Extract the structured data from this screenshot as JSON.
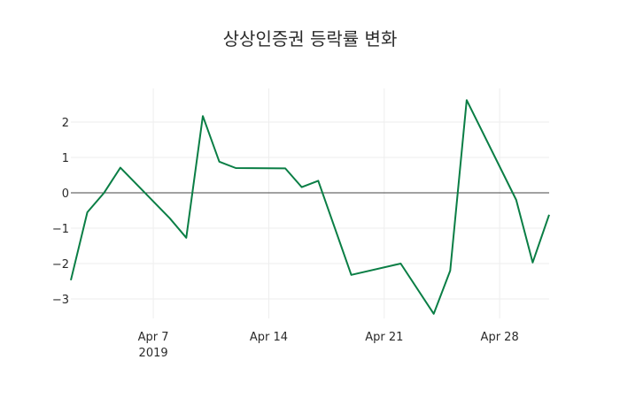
{
  "title": "상상인증권 등락률 변화",
  "colors": {
    "line": "#0a7e45",
    "zero_line": "#444444",
    "grid": "#eeeeee"
  },
  "chart_data": {
    "type": "line",
    "title": "상상인증권 등락률 변화",
    "xlabel": "",
    "ylabel": "",
    "x": [
      "2019-04-02",
      "2019-04-03",
      "2019-04-04",
      "2019-04-05",
      "2019-04-08",
      "2019-04-09",
      "2019-04-10",
      "2019-04-11",
      "2019-04-12",
      "2019-04-15",
      "2019-04-16",
      "2019-04-17",
      "2019-04-19",
      "2019-04-22",
      "2019-04-24",
      "2019-04-25",
      "2019-04-26",
      "2019-04-29",
      "2019-04-30",
      "2019-05-01"
    ],
    "series": [
      {
        "name": "등락률",
        "values": [
          -2.47,
          -0.55,
          -0.01,
          0.71,
          -0.72,
          -1.27,
          2.17,
          0.88,
          0.7,
          0.69,
          0.16,
          0.34,
          -2.32,
          -2.0,
          -3.42,
          -2.2,
          2.62,
          -0.2,
          -1.97,
          -0.62
        ]
      }
    ],
    "yticks": [
      -3,
      -2,
      -1,
      0,
      1,
      2
    ],
    "ytick_labels": [
      "−3",
      "−2",
      "−1",
      "0",
      "1",
      "2"
    ],
    "xticks": [
      "2019-04-07",
      "2019-04-14",
      "2019-04-21",
      "2019-04-28"
    ],
    "xtick_labels": [
      "Apr 7",
      "Apr 14",
      "Apr 21",
      "Apr 28"
    ],
    "xtick_sublabel": "2019",
    "ylim": [
      -3.6,
      2.95
    ],
    "xlim": [
      "2019-04-02",
      "2019-05-01"
    ],
    "grid": true,
    "legend": "none"
  }
}
